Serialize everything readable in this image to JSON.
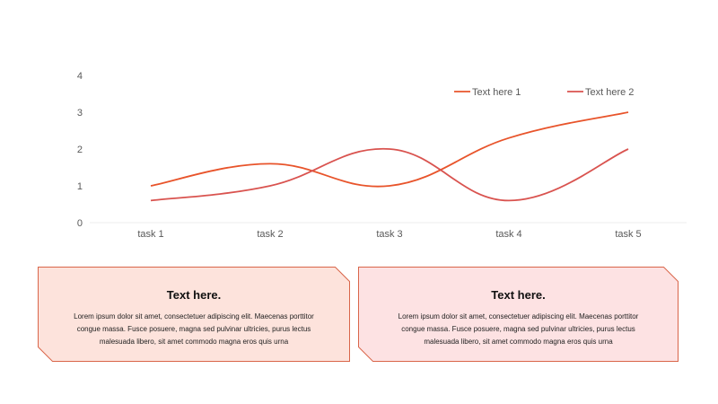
{
  "chart_data": {
    "type": "line",
    "categories": [
      "task 1",
      "task 2",
      "task 3",
      "task 4",
      "task 5"
    ],
    "yticks": [
      "0",
      "1",
      "2",
      "3",
      "4"
    ],
    "ylim": [
      0,
      4
    ],
    "grid": false,
    "legend_position": "top-right",
    "smooth": true,
    "series": [
      {
        "name": "Text here 1",
        "values": [
          1,
          1.6,
          1,
          2.3,
          3
        ],
        "color": "#E8542B"
      },
      {
        "name": "Text here 2",
        "values": [
          0.6,
          1,
          2,
          0.6,
          2
        ],
        "color": "#D9534F"
      }
    ]
  },
  "cards": [
    {
      "title": "Text here.",
      "body": "Lorem ipsum dolor sit amet, consectetuer adipiscing elit. Maecenas porttitor congue massa. Fusce posuere, magna sed pulvinar ultricies, purus lectus malesuada libero, sit amet commodo magna eros quis urna",
      "fill": "#FDE3DC",
      "stroke": "#D9664A"
    },
    {
      "title": "Text here.",
      "body": "Lorem ipsum dolor sit amet, consectetuer adipiscing elit. Maecenas porttitor congue massa. Fusce posuere, magna sed pulvinar ultricies, purus lectus malesuada libero, sit amet commodo magna eros quis urna",
      "fill": "#FDE2E3",
      "stroke": "#D9664A"
    }
  ]
}
